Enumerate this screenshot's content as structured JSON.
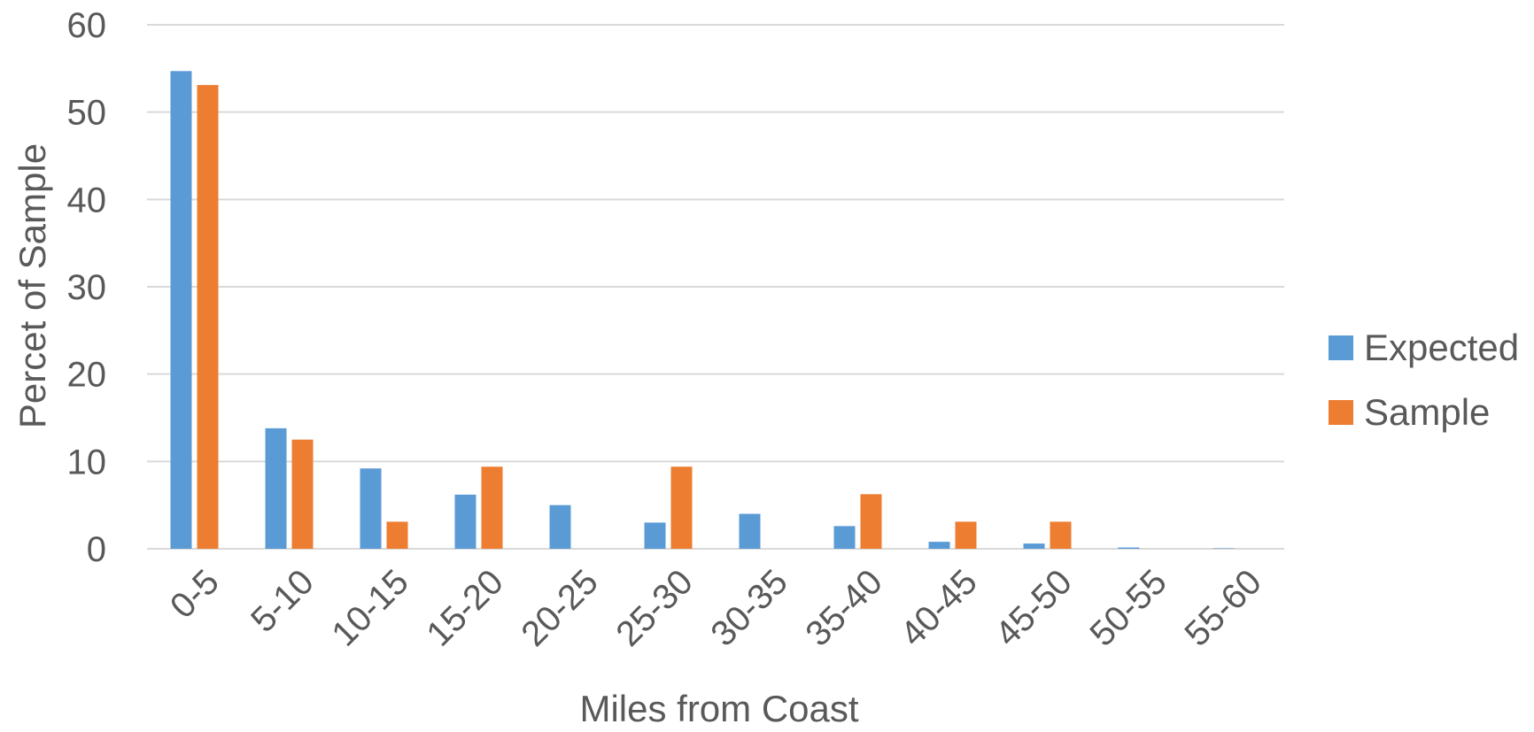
{
  "chart_data": {
    "type": "bar",
    "title": "",
    "xlabel": "Miles from Coast",
    "ylabel": "Percet of Sample",
    "ylim": [
      0,
      60
    ],
    "yticks": [
      "0",
      "10",
      "20",
      "30",
      "40",
      "50",
      "60"
    ],
    "grid": true,
    "legend_position": "right",
    "categories": [
      "0-5",
      "5-10",
      "10-15",
      "15-20",
      "20-25",
      "25-30",
      "30-35",
      "35-40",
      "40-45",
      "45-50",
      "50-55",
      "55-60"
    ],
    "series": [
      {
        "name": "Expected",
        "color": "#5B9BD5",
        "values": [
          54.7,
          13.8,
          9.2,
          6.2,
          5.0,
          3.0,
          4.0,
          2.6,
          0.8,
          0.6,
          0.15,
          0.05
        ]
      },
      {
        "name": "Sample",
        "color": "#ED7D31",
        "values": [
          53.1,
          12.5,
          3.1,
          9.4,
          0,
          9.4,
          0,
          6.25,
          3.1,
          3.1,
          0,
          0
        ]
      }
    ]
  }
}
